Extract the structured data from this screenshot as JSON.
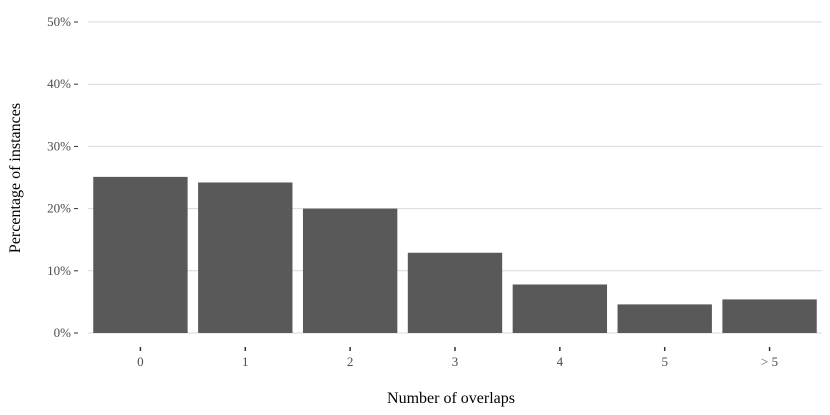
{
  "chart_data": {
    "type": "bar",
    "categories": [
      "0",
      "1",
      "2",
      "3",
      "4",
      "5",
      "> 5"
    ],
    "values": [
      25.1,
      24.2,
      20.0,
      12.9,
      7.8,
      4.6,
      5.4
    ],
    "xlabel": "Number of overlaps",
    "ylabel": "Percentage of instances",
    "ylim": [
      0,
      50
    ],
    "yticks": [
      0,
      10,
      20,
      30,
      40,
      50
    ],
    "ytick_labels": [
      "0%",
      "10%",
      "20%",
      "30%",
      "40%",
      "50%"
    ],
    "grid": "horizontal",
    "bar_color": "#595959",
    "grid_color": "#d9d9d9"
  }
}
